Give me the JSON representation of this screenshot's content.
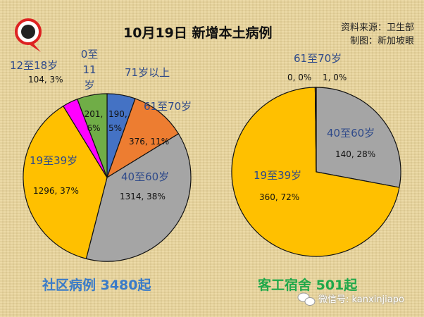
{
  "header": {
    "title": "10月19日 新增本土病例",
    "source": "资料来源：卫生部",
    "credit": "制图：新加坡眼"
  },
  "watermark": "微信号: kanxinjiapo",
  "logo_text": "新加坡眼",
  "chart_data": [
    {
      "type": "pie",
      "title": "社区病例 3480起",
      "title_color": "#3a7bc8",
      "slices": [
        {
          "label": "71岁以上",
          "value": 190,
          "percent": "5%",
          "data_label": "190, 5%",
          "color": "#4472c4"
        },
        {
          "label": "61至70岁",
          "value": 376,
          "percent": "11%",
          "data_label": "376, 11%",
          "color": "#ed7d31"
        },
        {
          "label": "40至60岁",
          "value": 1314,
          "percent": "38%",
          "data_label": "1314, 38%",
          "color": "#a5a5a5"
        },
        {
          "label": "19至39岁",
          "value": 1296,
          "percent": "37%",
          "data_label": "1296, 37%",
          "color": "#ffc000"
        },
        {
          "label": "12至18岁",
          "value": 104,
          "percent": "3%",
          "data_label": "104, 3%",
          "color": "#ff00ff"
        },
        {
          "label": "0至11岁",
          "value": 201,
          "percent": "6%",
          "data_label": "201, 6%",
          "color": "#70ad47"
        }
      ]
    },
    {
      "type": "pie",
      "title": "客工宿舍 501起",
      "title_color": "#1fa84a",
      "slices": [
        {
          "label": "40至60岁",
          "value": 140,
          "percent": "28%",
          "data_label": "140, 28%",
          "color": "#a5a5a5"
        },
        {
          "label": "19至39岁",
          "value": 360,
          "percent": "72%",
          "data_label": "360, 72%",
          "color": "#ffc000"
        },
        {
          "label": "",
          "value": 0,
          "percent": "0%",
          "data_label": "0, 0%",
          "color": "#70ad47"
        },
        {
          "label": "61至70岁",
          "value": 1,
          "percent": "0%",
          "data_label": "1, 0%",
          "color": "#ed7d31"
        }
      ]
    }
  ]
}
